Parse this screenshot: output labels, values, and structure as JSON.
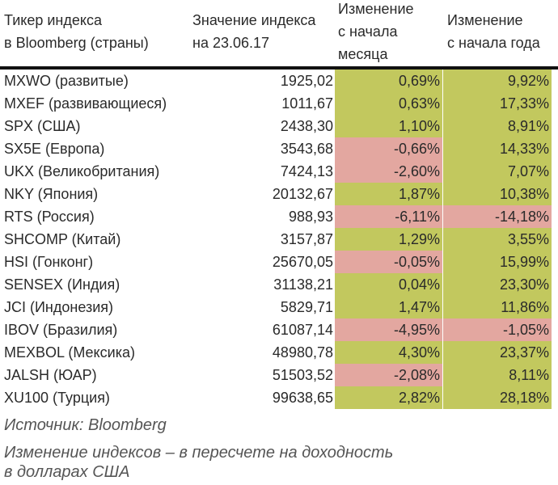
{
  "header": {
    "col1": [
      "Тикер индекса",
      "в Bloomberg (страны)"
    ],
    "col2": [
      "Значение индекса",
      "на 23.06.17"
    ],
    "col3": [
      "Изменение",
      "с начала",
      "месяца"
    ],
    "col4": [
      "Изменение",
      "с начала года"
    ]
  },
  "colors": {
    "positive": "#c2c85e",
    "negative": "#e3a7a0",
    "rule": "#111111"
  },
  "rows": [
    {
      "name": "MXWO (развитые)",
      "value": "1925,02",
      "mtd": "0,69%",
      "ytd": "9,92%"
    },
    {
      "name": "MXEF (развивающиеся)",
      "value": "1011,67",
      "mtd": "0,63%",
      "ytd": "17,33%"
    },
    {
      "name": "SPX (США)",
      "value": "2438,30",
      "mtd": "1,10%",
      "ytd": "8,91%"
    },
    {
      "name": "SX5E (Европа)",
      "value": "3543,68",
      "mtd": "-0,66%",
      "ytd": "14,33%"
    },
    {
      "name": "UKX (Великобритания)",
      "value": "7424,13",
      "mtd": "-2,60%",
      "ytd": "7,07%"
    },
    {
      "name": "NKY (Япония)",
      "value": "20132,67",
      "mtd": "1,87%",
      "ytd": "10,38%"
    },
    {
      "name": "RTS (Россия)",
      "value": "988,93",
      "mtd": "-6,11%",
      "ytd": "-14,18%"
    },
    {
      "name": "SHCOMP (Китай)",
      "value": "3157,87",
      "mtd": "1,29%",
      "ytd": "3,55%"
    },
    {
      "name": "HSI (Гонконг)",
      "value": "25670,05",
      "mtd": "-0,05%",
      "ytd": "15,99%"
    },
    {
      "name": "SENSEX (Индия)",
      "value": "31138,21",
      "mtd": "0,04%",
      "ytd": "23,30%"
    },
    {
      "name": "JCI (Индонезия)",
      "value": "5829,71",
      "mtd": "1,47%",
      "ytd": "11,86%"
    },
    {
      "name": "IBOV (Бразилия)",
      "value": "61087,14",
      "mtd": "-4,95%",
      "ytd": "-1,05%"
    },
    {
      "name": "MEXBOL (Мексика)",
      "value": "48980,78",
      "mtd": "4,30%",
      "ytd": "23,37%"
    },
    {
      "name": "JALSH (ЮАР)",
      "value": "51503,52",
      "mtd": "-2,08%",
      "ytd": "8,11%"
    },
    {
      "name": "XU100 (Турция)",
      "value": "99638,65",
      "mtd": "2,82%",
      "ytd": "28,18%"
    }
  ],
  "footer": {
    "source": "Источник: Bloomberg",
    "note_line1": "Изменение индексов – в пересчете на доходность",
    "note_line2": "в долларах США"
  }
}
